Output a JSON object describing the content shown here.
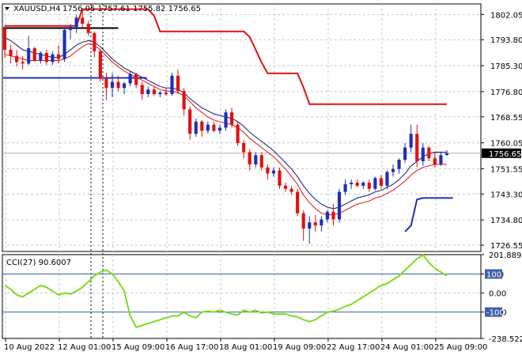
{
  "colors": {
    "background": "#ffffff",
    "frame": "#000000",
    "grid": "#c8c8c8",
    "bull": "#1f2fb8",
    "bear": "#e01010",
    "ma_fast": "#111a6e",
    "ma_slow": "#e01010",
    "trail_stop": "#e01010",
    "support_line": "#1f2fb8",
    "current_price_line": "#b0b0b0",
    "cci_line": "#7ddc1f",
    "cci_level": "#4060a8"
  },
  "header": {
    "symbol_timeframe": "XAUUSD,H4",
    "ohlc": "1756.05 1757.61 1755.82 1756.65"
  },
  "price_axis": {
    "labels": [
      "1802.05",
      "1793.80",
      "1785.30",
      "1776.80",
      "1768.55",
      "1760.05",
      "1751.55",
      "1743.30",
      "1734.80",
      "1726.55"
    ],
    "current_price": "1756.65"
  },
  "cci_panel": {
    "title": "CCI(27) 90.6007",
    "axis_labels": [
      "201.8893",
      "100",
      "0.00",
      "-100",
      "-238.5222"
    ],
    "tags": [
      "100",
      "-100"
    ]
  },
  "time_axis": {
    "labels": [
      "10 Aug 2022",
      "12 Aug 01:00",
      "15 Aug 09:00",
      "16 Aug 17:00",
      "18 Aug 01:00",
      "19 Aug 09:00",
      "22 Aug 17:00",
      "24 Aug 01:00",
      "25 Aug 09:00"
    ]
  },
  "chart_data": [
    {
      "type": "candlestick",
      "symbol": "XAUUSD",
      "timeframe": "H4",
      "y_range": [
        1724.5,
        1805.5
      ],
      "current_price": 1756.65,
      "candles": [
        [
          1797.5,
          1798.5,
          1788.0,
          1790.5
        ],
        [
          1790.5,
          1792.0,
          1786.0,
          1788.5
        ],
        [
          1788.5,
          1790.5,
          1785.0,
          1786.5
        ],
        [
          1786.5,
          1788.5,
          1784.0,
          1786.0
        ],
        [
          1786.0,
          1795.0,
          1785.5,
          1791.0
        ],
        [
          1791.0,
          1791.5,
          1786.5,
          1787.0
        ],
        [
          1787.0,
          1790.0,
          1786.0,
          1789.5
        ],
        [
          1789.5,
          1790.5,
          1785.5,
          1786.5
        ],
        [
          1786.5,
          1790.0,
          1785.5,
          1789.0
        ],
        [
          1789.0,
          1792.0,
          1786.0,
          1787.5
        ],
        [
          1787.5,
          1798.0,
          1786.5,
          1797.0
        ],
        [
          1797.0,
          1799.0,
          1794.0,
          1798.0
        ],
        [
          1798.0,
          1802.0,
          1796.0,
          1801.0
        ],
        [
          1801.0,
          1803.5,
          1797.5,
          1799.0
        ],
        [
          1799.0,
          1800.0,
          1795.0,
          1796.0
        ],
        [
          1796.0,
          1796.5,
          1788.0,
          1790.0
        ],
        [
          1790.0,
          1790.5,
          1780.0,
          1781.0
        ],
        [
          1781.0,
          1783.0,
          1774.0,
          1778.0
        ],
        [
          1778.0,
          1783.0,
          1775.0,
          1780.0
        ],
        [
          1780.0,
          1782.0,
          1777.0,
          1778.0
        ],
        [
          1778.0,
          1780.0,
          1776.0,
          1779.5
        ],
        [
          1779.5,
          1783.5,
          1778.5,
          1782.5
        ],
        [
          1782.5,
          1783.0,
          1778.0,
          1779.0
        ],
        [
          1779.0,
          1780.0,
          1774.0,
          1776.0
        ],
        [
          1776.0,
          1778.5,
          1775.0,
          1777.5
        ],
        [
          1777.5,
          1778.5,
          1775.5,
          1776.0
        ],
        [
          1776.0,
          1777.0,
          1775.0,
          1776.5
        ],
        [
          1776.5,
          1778.0,
          1775.5,
          1776.0
        ],
        [
          1776.0,
          1783.0,
          1775.5,
          1782.0
        ],
        [
          1782.0,
          1784.0,
          1776.0,
          1777.0
        ],
        [
          1777.0,
          1778.0,
          1769.0,
          1771.0
        ],
        [
          1771.0,
          1772.0,
          1761.0,
          1763.0
        ],
        [
          1763.0,
          1768.0,
          1762.0,
          1767.0
        ],
        [
          1767.0,
          1767.5,
          1762.0,
          1764.0
        ],
        [
          1764.0,
          1767.0,
          1763.0,
          1766.0
        ],
        [
          1766.0,
          1767.0,
          1763.5,
          1764.0
        ],
        [
          1764.0,
          1766.0,
          1763.0,
          1765.0
        ],
        [
          1765.0,
          1771.0,
          1764.0,
          1770.0
        ],
        [
          1770.0,
          1771.5,
          1765.0,
          1766.0
        ],
        [
          1766.0,
          1767.0,
          1759.0,
          1760.0
        ],
        [
          1760.0,
          1761.0,
          1755.0,
          1757.0
        ],
        [
          1757.0,
          1758.0,
          1751.0,
          1753.0
        ],
        [
          1753.0,
          1757.0,
          1752.0,
          1756.0
        ],
        [
          1756.0,
          1757.0,
          1751.0,
          1752.0
        ],
        [
          1752.0,
          1753.0,
          1748.0,
          1750.0
        ],
        [
          1750.0,
          1752.0,
          1749.0,
          1751.0
        ],
        [
          1751.0,
          1752.0,
          1745.0,
          1746.0
        ],
        [
          1746.0,
          1747.0,
          1744.0,
          1745.0
        ],
        [
          1745.0,
          1746.0,
          1743.0,
          1744.0
        ],
        [
          1744.0,
          1745.0,
          1736.0,
          1737.0
        ],
        [
          1737.0,
          1738.0,
          1728.0,
          1732.0
        ],
        [
          1732.0,
          1736.0,
          1727.0,
          1734.0
        ],
        [
          1734.0,
          1736.5,
          1731.0,
          1733.0
        ],
        [
          1733.0,
          1736.0,
          1731.0,
          1735.0
        ],
        [
          1735.0,
          1738.0,
          1734.0,
          1737.5
        ],
        [
          1737.5,
          1740.0,
          1733.0,
          1735.0
        ],
        [
          1735.0,
          1745.0,
          1734.0,
          1744.0
        ],
        [
          1744.0,
          1748.0,
          1743.0,
          1746.5
        ],
        [
          1746.5,
          1748.0,
          1745.0,
          1747.0
        ],
        [
          1747.0,
          1748.0,
          1745.5,
          1746.0
        ],
        [
          1746.0,
          1747.5,
          1745.0,
          1747.0
        ],
        [
          1747.0,
          1748.0,
          1744.0,
          1745.0
        ],
        [
          1745.0,
          1749.0,
          1744.5,
          1748.5
        ],
        [
          1748.5,
          1749.5,
          1745.0,
          1746.0
        ],
        [
          1746.0,
          1751.0,
          1745.0,
          1750.5
        ],
        [
          1750.5,
          1753.0,
          1749.0,
          1751.5
        ],
        [
          1751.5,
          1755.0,
          1750.0,
          1754.5
        ],
        [
          1754.5,
          1760.0,
          1753.5,
          1758.5
        ],
        [
          1758.5,
          1766.0,
          1757.0,
          1763.0
        ],
        [
          1763.0,
          1766.0,
          1752.0,
          1754.0
        ],
        [
          1754.0,
          1760.0,
          1752.5,
          1758.5
        ],
        [
          1758.5,
          1759.0,
          1754.0,
          1755.0
        ],
        [
          1755.0,
          1757.0,
          1752.0,
          1753.0
        ],
        [
          1753.0,
          1757.0,
          1752.5,
          1756.0
        ],
        [
          1756.05,
          1757.61,
          1755.82,
          1756.65
        ]
      ],
      "ma_fast": [
        1794.5,
        1793.5,
        1792.0,
        1790.5,
        1790.0,
        1789.5,
        1789.0,
        1788.5,
        1788.0,
        1788.0,
        1789.0,
        1790.5,
        1792.0,
        1793.0,
        1793.5,
        1793.0,
        1791.5,
        1789.5,
        1787.5,
        1786.0,
        1784.5,
        1783.5,
        1782.5,
        1781.5,
        1780.5,
        1779.5,
        1778.5,
        1778.0,
        1778.0,
        1777.5,
        1776.5,
        1774.5,
        1773.0,
        1771.5,
        1770.5,
        1769.5,
        1769.0,
        1768.5,
        1768.0,
        1767.0,
        1765.5,
        1763.5,
        1762.0,
        1760.5,
        1759.0,
        1757.5,
        1755.5,
        1753.5,
        1751.5,
        1749.0,
        1746.0,
        1743.5,
        1741.5,
        1740.0,
        1739.0,
        1738.5,
        1739.0,
        1740.0,
        1741.0,
        1742.0,
        1742.5,
        1743.0,
        1744.0,
        1744.5,
        1745.5,
        1746.5,
        1748.0,
        1750.0,
        1752.5,
        1754.0,
        1755.5,
        1756.5,
        1757.0,
        1757.0,
        1757.0
      ],
      "ma_slow": [
        1789.0,
        1788.5,
        1788.0,
        1787.5,
        1787.0,
        1787.0,
        1787.0,
        1787.0,
        1787.0,
        1787.0,
        1787.5,
        1788.5,
        1790.0,
        1791.5,
        1792.5,
        1792.0,
        1790.5,
        1788.5,
        1786.5,
        1785.0,
        1783.5,
        1782.5,
        1781.5,
        1780.5,
        1779.5,
        1778.5,
        1777.5,
        1777.0,
        1777.0,
        1776.5,
        1775.5,
        1773.5,
        1771.5,
        1770.0,
        1768.5,
        1767.5,
        1767.0,
        1766.5,
        1766.0,
        1765.0,
        1763.5,
        1761.5,
        1760.0,
        1758.5,
        1757.0,
        1755.5,
        1753.5,
        1751.5,
        1749.0,
        1746.5,
        1743.0,
        1740.5,
        1738.5,
        1737.0,
        1736.5,
        1736.5,
        1737.0,
        1738.0,
        1739.0,
        1740.0,
        1740.5,
        1741.0,
        1742.0,
        1742.5,
        1743.5,
        1744.5,
        1746.0,
        1747.5,
        1749.5,
        1751.0,
        1752.0,
        1752.5,
        1753.0,
        1753.0,
        1753.0
      ],
      "trail_stop": [
        1798.3,
        1798.3,
        1798.3,
        1798.3,
        1798.3,
        1798.3,
        1798.3,
        1798.3,
        1798.3,
        1798.3,
        1798.3,
        1798.3,
        1798.3,
        1803.8,
        1803.8,
        1803.8,
        1803.8,
        1803.8,
        1803.8,
        1803.8,
        1803.8,
        1803.8,
        1803.8,
        1803.8,
        1803.8,
        1801.6,
        1796.5,
        1796.5,
        1796.5,
        1796.5,
        1796.5,
        1796.5,
        1796.5,
        1796.5,
        1796.5,
        1796.5,
        1796.5,
        1796.5,
        1796.5,
        1796.5,
        1796.5,
        1794.7,
        1790.5,
        1786.3,
        1782.8,
        1782.8,
        1782.8,
        1782.8,
        1782.8,
        1782.8,
        1778.2,
        1772.7,
        1772.7,
        1772.7,
        1772.7,
        1772.7,
        1772.7,
        1772.7,
        1772.7,
        1772.7,
        1772.7,
        1772.7,
        1772.7,
        1772.7,
        1772.7,
        1772.7,
        1772.7,
        1772.7,
        1772.7,
        1772.7,
        1772.7,
        1772.7,
        1772.7,
        1772.7,
        1772.7
      ],
      "support_line": {
        "value": 1781.3,
        "from_bar": 0,
        "to_bar": 23
      },
      "black_line": {
        "value": 1797.6,
        "from_bar": 0,
        "to_bar": 19
      },
      "lower_band": [
        null,
        null,
        null,
        null,
        null,
        null,
        null,
        null,
        null,
        null,
        null,
        null,
        null,
        null,
        null,
        null,
        null,
        null,
        null,
        null,
        null,
        null,
        null,
        null,
        null,
        null,
        null,
        null,
        null,
        null,
        null,
        null,
        null,
        null,
        null,
        null,
        null,
        null,
        null,
        null,
        null,
        null,
        null,
        null,
        null,
        null,
        null,
        null,
        null,
        null,
        null,
        null,
        null,
        null,
        null,
        null,
        null,
        null,
        null,
        null,
        null,
        null,
        null,
        null,
        null,
        null,
        null,
        1731.0,
        1733.0,
        1741.5,
        1742.0,
        1742.0,
        1742.0,
        1742.0,
        1742.0,
        1742.0
      ],
      "red_stop_tail": [
        null,
        null,
        null,
        null,
        null,
        null,
        null,
        null,
        null,
        null,
        null,
        null,
        null,
        null,
        null,
        null,
        null,
        null,
        null,
        null,
        null,
        null,
        null,
        null,
        null,
        null,
        null,
        null,
        null,
        null,
        null,
        null,
        null,
        null,
        null,
        null,
        null,
        null,
        null,
        null,
        null,
        null,
        null,
        null,
        null,
        null,
        null,
        null,
        null,
        null,
        null,
        null,
        null,
        null,
        null,
        null,
        null,
        null,
        null,
        null,
        null,
        null,
        null,
        null,
        null,
        null,
        null,
        null,
        null,
        null,
        null,
        null,
        null,
        null,
        null
      ]
    },
    {
      "type": "line",
      "title": "CCI(27) 90.6007",
      "y_range": [
        -238.5222,
        201.8893
      ],
      "levels": [
        100,
        0,
        -100
      ],
      "values": [
        40,
        20,
        -10,
        -20,
        0,
        20,
        40,
        30,
        10,
        -10,
        0,
        -5,
        10,
        30,
        60,
        90,
        110,
        120,
        100,
        60,
        10,
        -120,
        -180,
        -170,
        -160,
        -150,
        -140,
        -130,
        -120,
        -120,
        -100,
        -120,
        -130,
        -100,
        -95,
        -100,
        -90,
        -100,
        -110,
        -115,
        -90,
        -100,
        -90,
        -105,
        -100,
        -110,
        -110,
        -110,
        -120,
        -125,
        -140,
        -150,
        -140,
        -120,
        -100,
        -95,
        -85,
        -70,
        -60,
        -40,
        -20,
        0,
        20,
        40,
        50,
        70,
        90,
        120,
        150,
        180,
        200,
        160,
        130,
        110,
        90.6
      ]
    }
  ]
}
